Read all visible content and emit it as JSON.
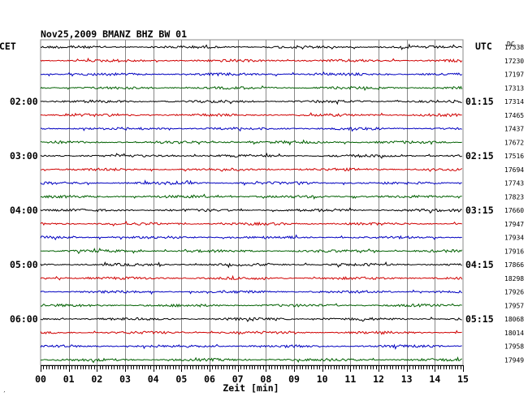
{
  "header": {
    "title": "Nov25,2009   BMANZ BHZ BW 01",
    "left_tz": "CET",
    "right_tz": "UTC",
    "dc_label": "DC"
  },
  "footer": {
    "mark": "′"
  },
  "colors": {
    "trace_cycle": [
      "#000000",
      "#d00000",
      "#0000c0",
      "#006000"
    ],
    "grid": "#888888"
  },
  "chart_data": {
    "type": "line",
    "title": "Nov25,2009   BMANZ BHZ BW 01",
    "xlabel": "Zeit [min]",
    "ylabel": "",
    "xlim": [
      0,
      15
    ],
    "x_ticks": [
      "00",
      "01",
      "02",
      "03",
      "04",
      "05",
      "06",
      "07",
      "08",
      "09",
      "10",
      "11",
      "12",
      "13",
      "14",
      "15"
    ],
    "grid": true,
    "left_time_labels": [
      {
        "row": 4,
        "label": "02:00"
      },
      {
        "row": 8,
        "label": "03:00"
      },
      {
        "row": 12,
        "label": "04:00"
      },
      {
        "row": 16,
        "label": "05:00"
      },
      {
        "row": 20,
        "label": "06:00"
      }
    ],
    "right_time_labels": [
      {
        "row": 4,
        "label": "01:15"
      },
      {
        "row": 8,
        "label": "02:15"
      },
      {
        "row": 12,
        "label": "03:15"
      },
      {
        "row": 16,
        "label": "04:15"
      },
      {
        "row": 20,
        "label": "05:15"
      }
    ],
    "dc_values": [
      "17338",
      "17230",
      "17197",
      "17313",
      "17314",
      "17465",
      "17437",
      "17672",
      "17516",
      "17694",
      "17743",
      "17823",
      "17660",
      "17947",
      "17934",
      "17916",
      "17866",
      "18298",
      "17926",
      "17957",
      "18068",
      "18014",
      "17958",
      "17949"
    ]
  }
}
